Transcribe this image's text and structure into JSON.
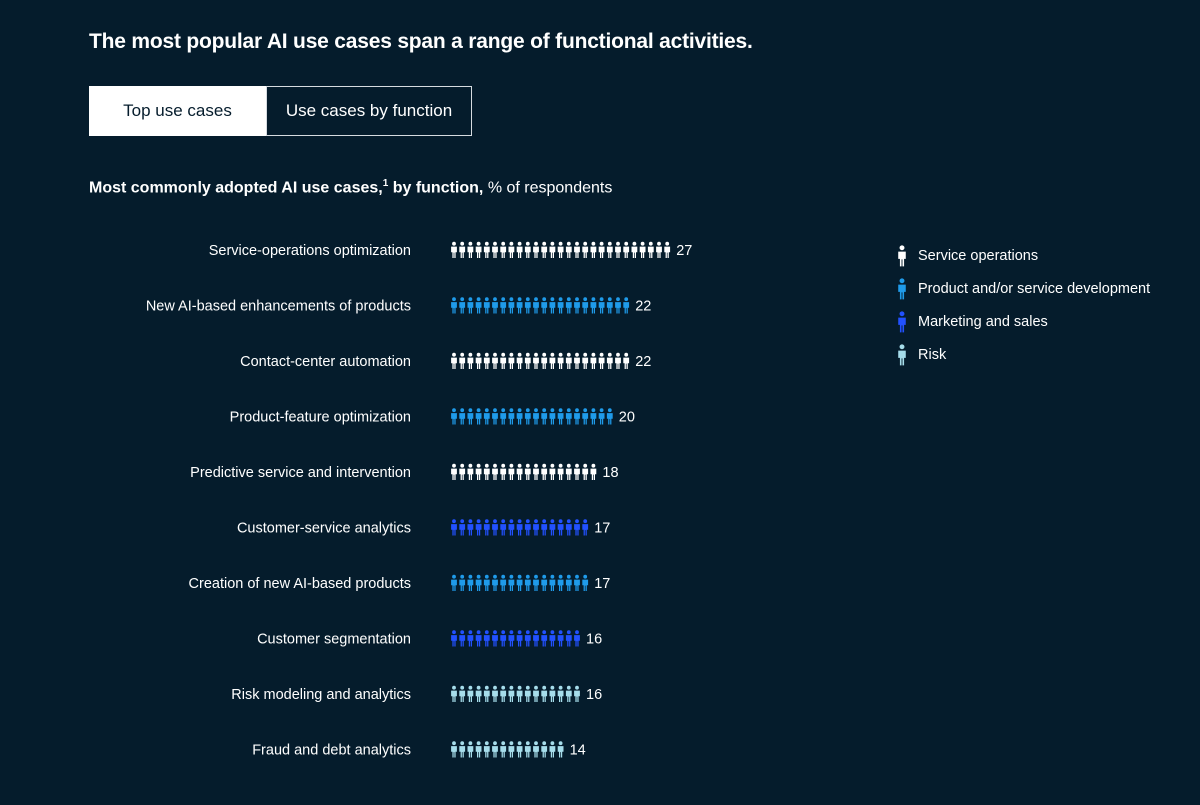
{
  "title": "The most popular AI use cases span a range of functional activities.",
  "tabs": [
    {
      "label": "Top use cases",
      "active": true
    },
    {
      "label": "Use cases by function",
      "active": false
    }
  ],
  "subtitle": {
    "bold": "Most commonly adopted AI use cases,",
    "footnote": "1",
    "bold2": " by function,",
    "normal": " % of respondents"
  },
  "colors": {
    "Service operations": "#FFFFFF",
    "Product and/or service development": "#1F9BEA",
    "Marketing and sales": "#2251FF",
    "Risk": "#A6DDEB",
    "background": "#051C2C"
  },
  "legend": [
    {
      "label": "Service operations",
      "color": "#FFFFFF"
    },
    {
      "label": "Product and/or service development",
      "color": "#1F9BEA"
    },
    {
      "label": "Marketing and sales",
      "color": "#2251FF"
    },
    {
      "label": "Risk",
      "color": "#A6DDEB"
    }
  ],
  "chart_data": {
    "type": "bar",
    "title": "Most commonly adopted AI use cases, by function, % of respondents",
    "categories": [
      "Service-operations optimization",
      "New AI-based enhancements of products",
      "Contact-center automation",
      "Product-feature optimization",
      "Predictive service and intervention",
      "Customer-service analytics",
      "Creation of new AI-based products",
      "Customer segmentation",
      "Risk modeling and analytics",
      "Fraud and debt analytics"
    ],
    "values": [
      27,
      22,
      22,
      20,
      18,
      17,
      17,
      16,
      16,
      14
    ],
    "functions": [
      "Service operations",
      "Product and/or service development",
      "Service operations",
      "Product and/or service development",
      "Service operations",
      "Marketing and sales",
      "Product and/or service development",
      "Marketing and sales",
      "Risk",
      "Risk"
    ],
    "unit": "% of respondents",
    "legend_position": "right"
  }
}
